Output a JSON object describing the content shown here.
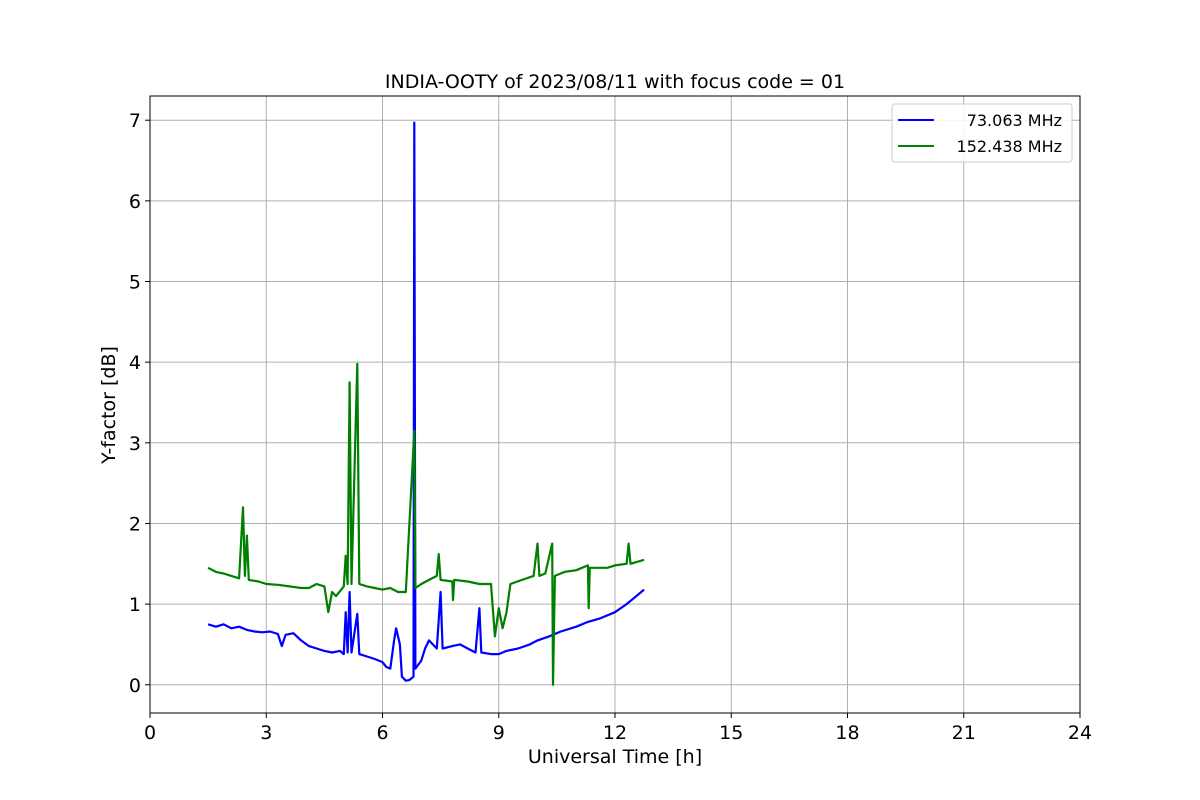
{
  "chart_data": {
    "type": "line",
    "title": "INDIA-OOTY of 2023/08/11 with focus code = 01",
    "xlabel": "Universal Time [h]",
    "ylabel": "Y-factor [dB]",
    "xlim": [
      0,
      24
    ],
    "ylim": [
      -0.35,
      7.3
    ],
    "xticks": [
      0,
      3,
      6,
      9,
      12,
      15,
      18,
      21,
      24
    ],
    "yticks": [
      0,
      1,
      2,
      3,
      4,
      5,
      6,
      7
    ],
    "grid": true,
    "legend_position": "top-right",
    "series": [
      {
        "name": "73.063 MHz",
        "color": "#0000ff",
        "points": [
          [
            1.5,
            0.75
          ],
          [
            1.7,
            0.72
          ],
          [
            1.9,
            0.75
          ],
          [
            2.1,
            0.7
          ],
          [
            2.3,
            0.72
          ],
          [
            2.5,
            0.68
          ],
          [
            2.7,
            0.66
          ],
          [
            2.9,
            0.65
          ],
          [
            3.1,
            0.66
          ],
          [
            3.3,
            0.63
          ],
          [
            3.4,
            0.48
          ],
          [
            3.5,
            0.62
          ],
          [
            3.7,
            0.64
          ],
          [
            3.9,
            0.55
          ],
          [
            4.1,
            0.48
          ],
          [
            4.3,
            0.45
          ],
          [
            4.5,
            0.42
          ],
          [
            4.7,
            0.4
          ],
          [
            4.9,
            0.42
          ],
          [
            5.0,
            0.38
          ],
          [
            5.05,
            0.9
          ],
          [
            5.1,
            0.4
          ],
          [
            5.15,
            1.15
          ],
          [
            5.2,
            0.4
          ],
          [
            5.35,
            0.88
          ],
          [
            5.4,
            0.38
          ],
          [
            5.6,
            0.35
          ],
          [
            5.8,
            0.32
          ],
          [
            6.0,
            0.28
          ],
          [
            6.1,
            0.22
          ],
          [
            6.2,
            0.2
          ],
          [
            6.3,
            0.55
          ],
          [
            6.35,
            0.7
          ],
          [
            6.45,
            0.5
          ],
          [
            6.5,
            0.1
          ],
          [
            6.6,
            0.05
          ],
          [
            6.7,
            0.06
          ],
          [
            6.8,
            0.1
          ],
          [
            6.82,
            6.97
          ],
          [
            6.85,
            0.2
          ],
          [
            7.0,
            0.3
          ],
          [
            7.1,
            0.45
          ],
          [
            7.2,
            0.55
          ],
          [
            7.4,
            0.45
          ],
          [
            7.5,
            1.15
          ],
          [
            7.55,
            0.45
          ],
          [
            7.8,
            0.48
          ],
          [
            8.0,
            0.5
          ],
          [
            8.2,
            0.45
          ],
          [
            8.4,
            0.4
          ],
          [
            8.5,
            0.95
          ],
          [
            8.55,
            0.4
          ],
          [
            8.8,
            0.38
          ],
          [
            9.0,
            0.38
          ],
          [
            9.2,
            0.42
          ],
          [
            9.5,
            0.45
          ],
          [
            9.8,
            0.5
          ],
          [
            10.0,
            0.55
          ],
          [
            10.3,
            0.6
          ],
          [
            10.6,
            0.66
          ],
          [
            11.0,
            0.72
          ],
          [
            11.3,
            0.78
          ],
          [
            11.6,
            0.82
          ],
          [
            12.0,
            0.9
          ],
          [
            12.3,
            1.0
          ],
          [
            12.5,
            1.08
          ],
          [
            12.75,
            1.18
          ]
        ]
      },
      {
        "name": "152.438 MHz",
        "color": "#008000",
        "points": [
          [
            1.5,
            1.45
          ],
          [
            1.7,
            1.4
          ],
          [
            1.9,
            1.38
          ],
          [
            2.1,
            1.35
          ],
          [
            2.3,
            1.32
          ],
          [
            2.4,
            2.2
          ],
          [
            2.45,
            1.35
          ],
          [
            2.5,
            1.85
          ],
          [
            2.55,
            1.3
          ],
          [
            2.8,
            1.28
          ],
          [
            3.0,
            1.25
          ],
          [
            3.3,
            1.24
          ],
          [
            3.6,
            1.22
          ],
          [
            3.9,
            1.2
          ],
          [
            4.1,
            1.2
          ],
          [
            4.3,
            1.25
          ],
          [
            4.5,
            1.22
          ],
          [
            4.6,
            0.9
          ],
          [
            4.7,
            1.15
          ],
          [
            4.8,
            1.1
          ],
          [
            5.0,
            1.22
          ],
          [
            5.05,
            1.6
          ],
          [
            5.1,
            1.25
          ],
          [
            5.15,
            3.75
          ],
          [
            5.2,
            1.25
          ],
          [
            5.35,
            3.98
          ],
          [
            5.4,
            1.25
          ],
          [
            5.6,
            1.22
          ],
          [
            5.8,
            1.2
          ],
          [
            6.0,
            1.18
          ],
          [
            6.2,
            1.2
          ],
          [
            6.4,
            1.15
          ],
          [
            6.6,
            1.15
          ],
          [
            6.82,
            3.15
          ],
          [
            6.85,
            1.2
          ],
          [
            7.0,
            1.25
          ],
          [
            7.2,
            1.3
          ],
          [
            7.4,
            1.35
          ],
          [
            7.45,
            1.62
          ],
          [
            7.5,
            1.3
          ],
          [
            7.8,
            1.28
          ],
          [
            7.82,
            1.05
          ],
          [
            7.85,
            1.3
          ],
          [
            8.2,
            1.28
          ],
          [
            8.5,
            1.25
          ],
          [
            8.8,
            1.25
          ],
          [
            8.9,
            0.6
          ],
          [
            9.0,
            0.95
          ],
          [
            9.1,
            0.7
          ],
          [
            9.2,
            0.9
          ],
          [
            9.3,
            1.25
          ],
          [
            9.6,
            1.3
          ],
          [
            9.9,
            1.35
          ],
          [
            10.0,
            1.75
          ],
          [
            10.05,
            1.35
          ],
          [
            10.2,
            1.38
          ],
          [
            10.38,
            1.75
          ],
          [
            10.4,
            0.0
          ],
          [
            10.45,
            1.35
          ],
          [
            10.7,
            1.4
          ],
          [
            11.0,
            1.42
          ],
          [
            11.3,
            1.48
          ],
          [
            11.32,
            0.95
          ],
          [
            11.35,
            1.45
          ],
          [
            11.8,
            1.45
          ],
          [
            12.0,
            1.48
          ],
          [
            12.3,
            1.5
          ],
          [
            12.35,
            1.75
          ],
          [
            12.4,
            1.5
          ],
          [
            12.75,
            1.55
          ]
        ]
      }
    ]
  }
}
